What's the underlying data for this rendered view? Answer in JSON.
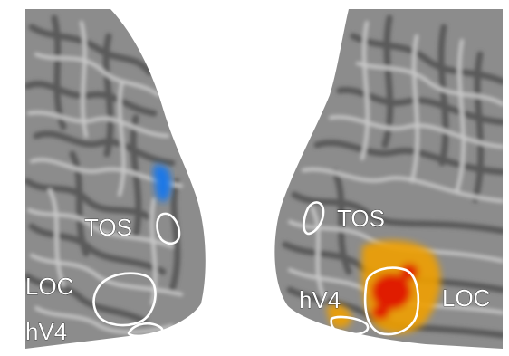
{
  "labels": {
    "left_tos": "TOS",
    "left_loc": "LOC",
    "left_hv4": "hV4",
    "right_tos": "TOS",
    "right_hv4": "hV4",
    "right_loc": "LOC"
  },
  "colors": {
    "background": "#ffffff",
    "cortex": "#8c8c8c",
    "sulci": "#5a5a5a",
    "gyri": "#c8c8c8",
    "roi_outline": "#ffffff",
    "deactivation": "#1e78e6",
    "activation_low": "#f0a000",
    "activation_high": "#e01e00"
  }
}
